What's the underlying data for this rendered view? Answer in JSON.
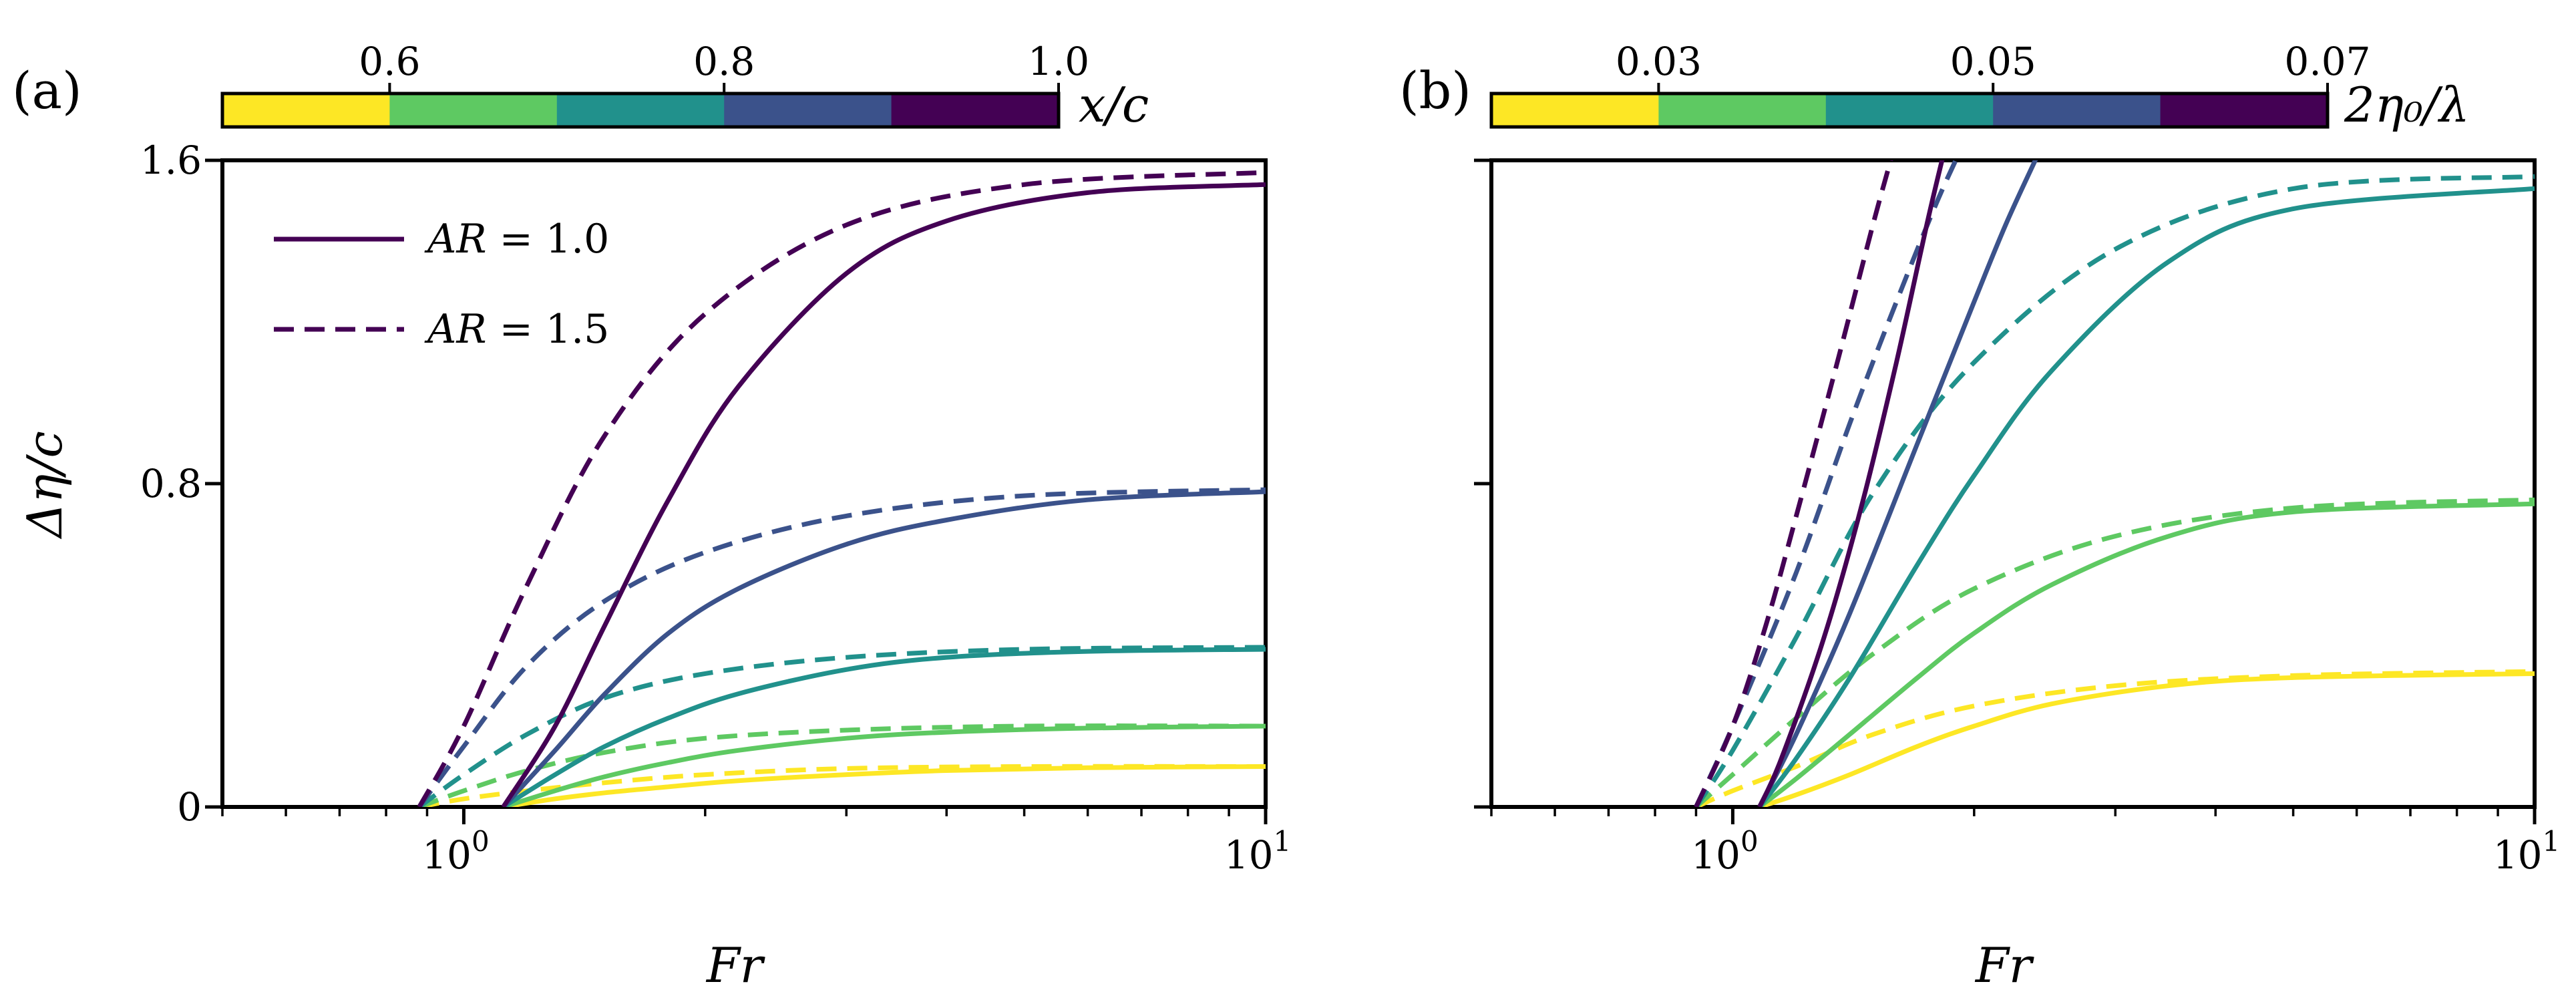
{
  "chart_data": [
    {
      "type": "line",
      "panel_label": "(a)",
      "xlabel": "Fr",
      "ylabel": "Δη/c",
      "x_scale": "log",
      "xlim": [
        0.5,
        10
      ],
      "ylim": [
        0,
        1.6
      ],
      "y_ticks": [
        0,
        0.8,
        1.6
      ],
      "y_tick_labels": [
        "0",
        "0.8",
        "1.6"
      ],
      "x_tick_labels": [
        {
          "base": "10",
          "exp": "0"
        },
        {
          "base": "10",
          "exp": "1"
        }
      ],
      "colorbar": {
        "label": "x/c",
        "ticks": [
          "0.6",
          "0.8",
          "1.0"
        ],
        "levels": [
          "#fde725",
          "#5ec962",
          "#21918c",
          "#3b528b",
          "#440154"
        ]
      },
      "legend": {
        "placement": "top-left",
        "entries": [
          {
            "style": "solid",
            "label_var": "AR",
            "label_rest": " = 1.0"
          },
          {
            "style": "dashed",
            "label_var": "AR",
            "label_rest": " = 1.5"
          }
        ]
      },
      "series": [
        {
          "color": "#fde725",
          "style": "solid",
          "x": [
            1.12,
            1.3,
            1.5,
            1.8,
            2.2,
            3,
            4,
            6,
            10
          ],
          "y": [
            0.0,
            0.02,
            0.035,
            0.05,
            0.065,
            0.08,
            0.09,
            0.097,
            0.1
          ]
        },
        {
          "color": "#fde725",
          "style": "dashed",
          "x": [
            0.88,
            1.0,
            1.2,
            1.5,
            2,
            3,
            5,
            10
          ],
          "y": [
            0.0,
            0.02,
            0.04,
            0.06,
            0.08,
            0.095,
            0.1,
            0.1
          ]
        },
        {
          "color": "#5ec962",
          "style": "solid",
          "x": [
            1.12,
            1.3,
            1.5,
            1.8,
            2.2,
            3,
            4,
            6,
            10
          ],
          "y": [
            0.0,
            0.04,
            0.075,
            0.11,
            0.14,
            0.17,
            0.185,
            0.195,
            0.2
          ]
        },
        {
          "color": "#5ec962",
          "style": "dashed",
          "x": [
            0.88,
            1.0,
            1.2,
            1.5,
            2,
            3,
            5,
            10
          ],
          "y": [
            0.0,
            0.04,
            0.09,
            0.135,
            0.17,
            0.19,
            0.2,
            0.2
          ]
        },
        {
          "color": "#21918c",
          "style": "solid",
          "x": [
            1.12,
            1.3,
            1.5,
            1.8,
            2.2,
            3,
            4,
            6,
            10
          ],
          "y": [
            0.0,
            0.08,
            0.15,
            0.22,
            0.28,
            0.34,
            0.37,
            0.385,
            0.39
          ]
        },
        {
          "color": "#21918c",
          "style": "dashed",
          "x": [
            0.88,
            1.0,
            1.2,
            1.5,
            2,
            3,
            5,
            10
          ],
          "y": [
            0.0,
            0.08,
            0.18,
            0.27,
            0.33,
            0.37,
            0.39,
            0.395
          ]
        },
        {
          "color": "#3b528b",
          "style": "solid",
          "x": [
            1.12,
            1.3,
            1.5,
            1.8,
            2.2,
            3,
            4,
            6,
            10
          ],
          "y": [
            0.0,
            0.14,
            0.28,
            0.43,
            0.54,
            0.65,
            0.71,
            0.76,
            0.78
          ]
        },
        {
          "color": "#3b528b",
          "style": "dashed",
          "x": [
            0.88,
            1.0,
            1.2,
            1.5,
            2,
            3,
            5,
            10
          ],
          "y": [
            0.0,
            0.15,
            0.35,
            0.51,
            0.63,
            0.72,
            0.77,
            0.785
          ]
        },
        {
          "color": "#440154",
          "style": "solid",
          "x": [
            1.12,
            1.3,
            1.5,
            1.8,
            2.2,
            3,
            4,
            6,
            10
          ],
          "y": [
            0.0,
            0.2,
            0.45,
            0.76,
            1.04,
            1.32,
            1.45,
            1.52,
            1.54
          ]
        },
        {
          "color": "#440154",
          "style": "dashed",
          "x": [
            0.88,
            1.0,
            1.2,
            1.5,
            2,
            3,
            5,
            10
          ],
          "y": [
            0.0,
            0.2,
            0.55,
            0.92,
            1.22,
            1.44,
            1.54,
            1.57
          ]
        }
      ]
    },
    {
      "type": "line",
      "panel_label": "(b)",
      "xlabel": "Fr",
      "ylabel": "",
      "x_scale": "log",
      "xlim": [
        0.5,
        10
      ],
      "ylim": [
        0,
        1.6
      ],
      "y_ticks": [
        0,
        0.8,
        1.6
      ],
      "y_tick_labels": [],
      "x_tick_labels": [
        {
          "base": "10",
          "exp": "0"
        },
        {
          "base": "10",
          "exp": "1"
        }
      ],
      "colorbar": {
        "label": "2η₀/λ",
        "ticks": [
          "0.03",
          "0.05",
          "0.07"
        ],
        "levels": [
          "#fde725",
          "#5ec962",
          "#21918c",
          "#3b528b",
          "#440154"
        ]
      },
      "series": [
        {
          "color": "#fde725",
          "style": "solid",
          "x": [
            1.08,
            1.2,
            1.4,
            1.7,
            2,
            2.5,
            3.5,
            5,
            10
          ],
          "y": [
            0.0,
            0.03,
            0.08,
            0.15,
            0.2,
            0.255,
            0.3,
            0.32,
            0.33
          ]
        },
        {
          "color": "#fde725",
          "style": "dashed",
          "x": [
            0.9,
            1.0,
            1.2,
            1.5,
            2,
            3,
            5,
            10
          ],
          "y": [
            0.0,
            0.04,
            0.1,
            0.18,
            0.25,
            0.3,
            0.325,
            0.335
          ]
        },
        {
          "color": "#5ec962",
          "style": "solid",
          "x": [
            1.08,
            1.2,
            1.4,
            1.7,
            2,
            2.5,
            3.5,
            5,
            10
          ],
          "y": [
            0.0,
            0.07,
            0.18,
            0.32,
            0.43,
            0.55,
            0.67,
            0.73,
            0.75
          ]
        },
        {
          "color": "#5ec962",
          "style": "dashed",
          "x": [
            0.9,
            1.0,
            1.2,
            1.5,
            2,
            3,
            5,
            10
          ],
          "y": [
            0.0,
            0.08,
            0.22,
            0.38,
            0.54,
            0.67,
            0.74,
            0.76
          ]
        },
        {
          "color": "#21918c",
          "style": "solid",
          "x": [
            1.08,
            1.2,
            1.4,
            1.7,
            2,
            2.5,
            3.5,
            5,
            10
          ],
          "y": [
            0.0,
            0.12,
            0.32,
            0.6,
            0.82,
            1.08,
            1.35,
            1.48,
            1.53
          ]
        },
        {
          "color": "#21918c",
          "style": "dashed",
          "x": [
            0.9,
            1.0,
            1.2,
            1.5,
            2,
            3,
            5,
            10
          ],
          "y": [
            0.0,
            0.14,
            0.42,
            0.78,
            1.1,
            1.38,
            1.53,
            1.56
          ]
        },
        {
          "color": "#3b528b",
          "style": "solid",
          "x": [
            1.08,
            1.2,
            1.4,
            1.7,
            2,
            2.2,
            2.45
          ],
          "y": [
            0.0,
            0.18,
            0.48,
            0.9,
            1.25,
            1.45,
            1.65
          ]
        },
        {
          "color": "#3b528b",
          "style": "dashed",
          "x": [
            0.9,
            1.0,
            1.2,
            1.4,
            1.6,
            1.8,
            1.95
          ],
          "y": [
            0.0,
            0.2,
            0.58,
            0.95,
            1.25,
            1.5,
            1.65
          ]
        },
        {
          "color": "#440154",
          "style": "solid",
          "x": [
            1.08,
            1.15,
            1.3,
            1.45,
            1.6,
            1.75,
            1.85
          ],
          "y": [
            0.0,
            0.12,
            0.42,
            0.75,
            1.1,
            1.45,
            1.65
          ]
        },
        {
          "color": "#440154",
          "style": "dashed",
          "x": [
            0.9,
            1.0,
            1.1,
            1.2,
            1.35,
            1.5,
            1.6
          ],
          "y": [
            0.0,
            0.2,
            0.45,
            0.72,
            1.1,
            1.45,
            1.65
          ]
        }
      ]
    }
  ]
}
